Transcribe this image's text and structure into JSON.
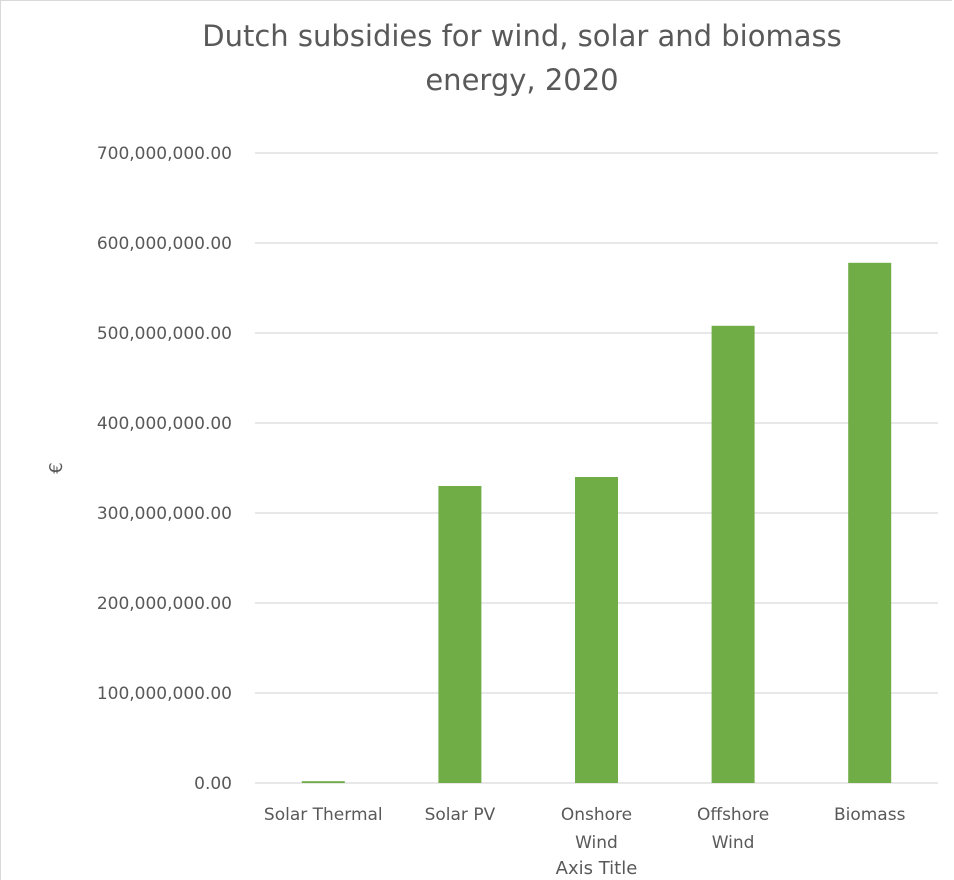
{
  "chart_data": {
    "type": "bar",
    "title": "Dutch subsidies for wind, solar and biomass energy, 2020",
    "title_lines": [
      "Dutch subsidies for wind, solar and biomass",
      "energy, 2020"
    ],
    "xlabel": "Axis Title",
    "ylabel": "€",
    "categories": [
      "Solar Thermal",
      "Solar PV",
      "Onshore Wind",
      "Offshore Wind",
      "Biomass"
    ],
    "category_lines": [
      [
        "Solar Thermal"
      ],
      [
        "Solar PV"
      ],
      [
        "Onshore",
        "Wind"
      ],
      [
        "Offshore",
        "Wind"
      ],
      [
        "Biomass"
      ]
    ],
    "values": [
      2000000,
      330000000,
      340000000,
      508000000,
      578000000
    ],
    "ylim": [
      0,
      700000000
    ],
    "yticks": [
      0,
      100000000,
      200000000,
      300000000,
      400000000,
      500000000,
      600000000,
      700000000
    ],
    "ytick_labels": [
      "0.00",
      "100,000,000.00",
      "200,000,000.00",
      "300,000,000.00",
      "400,000,000.00",
      "500,000,000.00",
      "600,000,000.00",
      "700,000,000.00"
    ],
    "grid": true,
    "legend": "none",
    "bar_color": "#70ad47",
    "grid_color": "#d9d9d9",
    "text_color": "#595959"
  }
}
